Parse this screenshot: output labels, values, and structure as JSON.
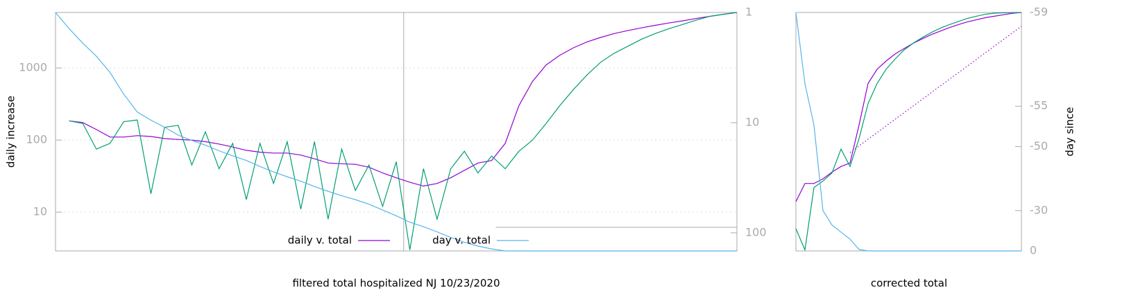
{
  "chart_data": [
    {
      "type": "line",
      "xlabel": "filtered total hospitalized NJ 10/23/2020",
      "ylabel": "daily increase",
      "log_y": true,
      "grid": true,
      "legend": "bottom center",
      "xlim": [
        0,
        100
      ],
      "ylim": [
        2.9,
        5880
      ],
      "yticks": [
        10,
        100,
        1000
      ],
      "y2lim": [
        146,
        1
      ],
      "y2ticks": [
        1,
        10,
        100
      ],
      "log_y2": true,
      "reference_lines": [
        {
          "x": 51.1
        },
        {
          "y2": 89,
          "from_x": 64.6
        }
      ],
      "x": [
        0,
        2,
        4,
        6,
        8,
        10,
        12,
        14,
        16,
        18,
        20,
        22,
        24,
        26,
        28,
        30,
        32,
        34,
        36,
        38,
        40,
        42,
        44,
        46,
        48,
        50,
        52,
        54,
        56,
        58,
        60,
        62,
        64,
        66,
        68,
        70,
        72,
        74,
        76,
        78,
        80,
        82,
        84,
        86,
        88,
        90,
        92,
        94,
        96,
        98,
        100
      ],
      "series": [
        {
          "name": "daily v. total",
          "color": "#9400d3",
          "values": [
            null,
            185,
            175,
            140,
            110,
            110,
            115,
            112,
            105,
            102,
            100,
            95,
            88,
            80,
            72,
            68,
            66,
            66,
            62,
            55,
            48,
            47,
            46,
            42,
            35,
            30,
            26,
            23,
            25,
            30,
            38,
            48,
            52,
            90,
            300,
            650,
            1100,
            1500,
            1900,
            2300,
            2650,
            3000,
            3300,
            3600,
            3900,
            4200,
            4500,
            4850,
            5200,
            5550,
            5880
          ]
        },
        {
          "color": "#009e73",
          "values": [
            null,
            185,
            170,
            75,
            90,
            180,
            190,
            18,
            150,
            160,
            45,
            130,
            40,
            90,
            15,
            90,
            25,
            95,
            11,
            95,
            8,
            75,
            20,
            45,
            12,
            50,
            3,
            40,
            8,
            40,
            70,
            35,
            60,
            40,
            70,
            100,
            170,
            300,
            500,
            800,
            1200,
            1600,
            2000,
            2500,
            3000,
            3500,
            4000,
            4600,
            5200,
            5550,
            5880
          ]
        },
        {
          "name": "day v. total",
          "color": "#56b4e9",
          "axis": "y2",
          "values": [
            1,
            1.4,
            1.9,
            2.5,
            3.5,
            5.5,
            8,
            9.5,
            11,
            13,
            14.5,
            16,
            18,
            20,
            22,
            25,
            28,
            31,
            34,
            38,
            42,
            46,
            50,
            55,
            62,
            70,
            80,
            88,
            98,
            110,
            122,
            132,
            140,
            146,
            146,
            146,
            146,
            146,
            146,
            146,
            146,
            146,
            146,
            146,
            146,
            146,
            146,
            146,
            146,
            146,
            146
          ]
        }
      ]
    },
    {
      "type": "line",
      "xlabel": "corrected total",
      "y2label": "day since",
      "log_y": true,
      "grid": false,
      "xlim": [
        0,
        100
      ],
      "ylim": [
        2.9,
        5880
      ],
      "yticks": [],
      "y2lim": [
        0,
        -59
      ],
      "y2ticks": [
        -59,
        -55,
        -50,
        -30,
        0
      ],
      "log_y2": true,
      "y2_log_offset": 60,
      "x": [
        0,
        4,
        8,
        12,
        16,
        20,
        24,
        28,
        32,
        36,
        40,
        44,
        48,
        52,
        56,
        60,
        64,
        68,
        72,
        76,
        80,
        84,
        88,
        92,
        96,
        100
      ],
      "series": [
        {
          "color": "#9400d3",
          "values": [
            14,
            25,
            25,
            29,
            36,
            43,
            48,
            162,
            610,
            960,
            1250,
            1560,
            1860,
            2200,
            2530,
            2900,
            3240,
            3630,
            3980,
            4350,
            4650,
            4980,
            5220,
            5470,
            5740,
            5880
          ]
        },
        {
          "color": "#009e73",
          "values": [
            5.9,
            3,
            22,
            27,
            35,
            75,
            43,
            105,
            320,
            610,
            960,
            1330,
            1780,
            2200,
            2640,
            3100,
            3560,
            3980,
            4400,
            4860,
            5220,
            5550,
            5750,
            5820,
            5850,
            5880
          ]
        },
        {
          "color": "#56b4e9",
          "axis": "y2",
          "values": [
            -59,
            -56.6,
            -53.1,
            -30,
            -21.5,
            -16.6,
            -11,
            -1.5,
            0,
            0,
            0,
            0,
            0,
            0,
            0,
            0,
            0,
            0,
            0,
            0,
            0,
            0,
            0,
            0,
            0,
            0
          ]
        },
        {
          "color": "#9400d3",
          "dash": "dotted",
          "values": [
            null,
            null,
            null,
            null,
            null,
            null,
            67,
            83,
            103,
            127,
            157,
            194,
            240,
            297,
            367,
            454,
            561,
            694,
            858,
            1061,
            1312,
            1622,
            2006,
            2481,
            3068,
            3780
          ]
        }
      ]
    }
  ]
}
